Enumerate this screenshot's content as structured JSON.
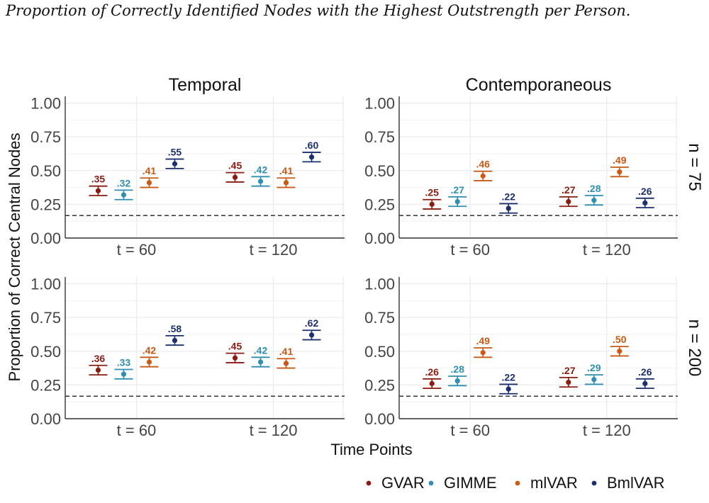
{
  "figure": {
    "title": "Proportion of Correctly Identified Nodes with the Highest Outstrength per Person.",
    "xlabel": "Time Points",
    "ylabel": "Proportion of Correct Central Nodes"
  },
  "chart_data": {
    "type": "scatter",
    "subtype": "point with error bars, faceted",
    "columns": [
      "Temporal",
      "Contemporaneous"
    ],
    "rows": [
      "n = 75",
      "n = 200"
    ],
    "categories": [
      "t = 60",
      "t = 120"
    ],
    "yticks": [
      "0.00",
      "0.25",
      "0.50",
      "0.75",
      "1.00"
    ],
    "ylim": [
      0,
      1.05
    ],
    "reference_line": 0.1667,
    "grid": true,
    "legend_position": "bottom-right",
    "series": [
      {
        "name": "GVAR",
        "color": "#8b1a10"
      },
      {
        "name": "GIMME",
        "color": "#2f8fb0"
      },
      {
        "name": "mlVAR",
        "color": "#c85a14"
      },
      {
        "name": "BmlVAR",
        "color": "#1c2f6e"
      }
    ],
    "panels": [
      {
        "row": "n = 75",
        "column": "Temporal",
        "values": [
          [
            0.35,
            0.32,
            0.41,
            0.55
          ],
          [
            0.45,
            0.42,
            0.41,
            0.6
          ]
        ],
        "labels": [
          [
            ".35",
            ".32",
            ".41",
            ".55"
          ],
          [
            ".45",
            ".42",
            ".41",
            ".60"
          ]
        ],
        "error_half_width": [
          [
            0.035,
            0.035,
            0.035,
            0.035
          ],
          [
            0.035,
            0.035,
            0.035,
            0.035
          ]
        ]
      },
      {
        "row": "n = 75",
        "column": "Contemporaneous",
        "values": [
          [
            0.25,
            0.27,
            0.46,
            0.22
          ],
          [
            0.27,
            0.28,
            0.49,
            0.26
          ]
        ],
        "labels": [
          [
            ".25",
            ".27",
            ".46",
            ".22"
          ],
          [
            ".27",
            ".28",
            ".49",
            ".26"
          ]
        ],
        "error_half_width": [
          [
            0.035,
            0.035,
            0.035,
            0.035
          ],
          [
            0.035,
            0.035,
            0.035,
            0.035
          ]
        ]
      },
      {
        "row": "n = 200",
        "column": "Temporal",
        "values": [
          [
            0.36,
            0.33,
            0.42,
            0.58
          ],
          [
            0.45,
            0.42,
            0.41,
            0.62
          ]
        ],
        "labels": [
          [
            ".36",
            ".33",
            ".42",
            ".58"
          ],
          [
            ".45",
            ".42",
            ".41",
            ".62"
          ]
        ],
        "error_half_width": [
          [
            0.035,
            0.035,
            0.035,
            0.035
          ],
          [
            0.035,
            0.035,
            0.035,
            0.035
          ]
        ]
      },
      {
        "row": "n = 200",
        "column": "Contemporaneous",
        "values": [
          [
            0.26,
            0.28,
            0.49,
            0.22
          ],
          [
            0.27,
            0.29,
            0.5,
            0.26
          ]
        ],
        "labels": [
          [
            ".26",
            ".28",
            ".49",
            ".22"
          ],
          [
            ".27",
            ".29",
            ".50",
            ".26"
          ]
        ],
        "error_half_width": [
          [
            0.035,
            0.035,
            0.035,
            0.035
          ],
          [
            0.035,
            0.035,
            0.035,
            0.035
          ]
        ]
      }
    ]
  }
}
